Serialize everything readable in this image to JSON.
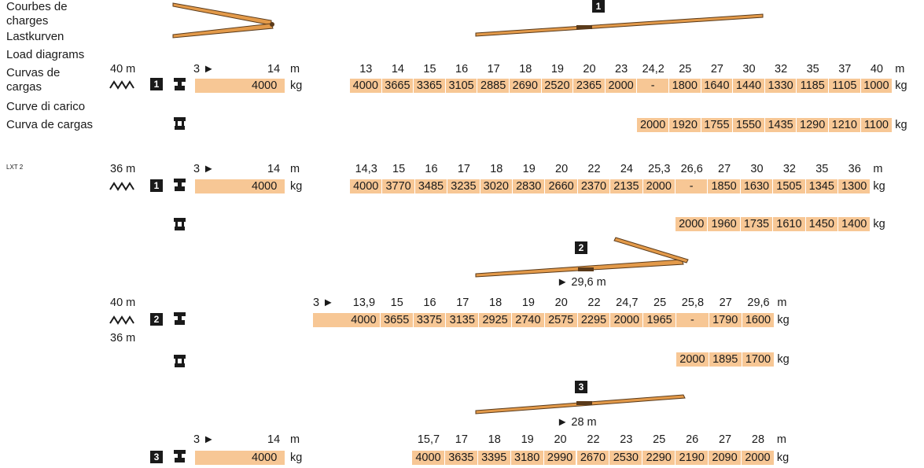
{
  "labels": {
    "languages": [
      "Courbes de charges",
      "Lastkurven",
      "Load diagrams",
      "Curvas de cargas",
      "Curve di carico",
      "Curva de cargas"
    ],
    "model": "LXT 2"
  },
  "boom_sections": [
    "1",
    "2",
    "3"
  ],
  "boom_reach": {
    "s2": "► 29,6 m",
    "s3": "► 28 m"
  },
  "colors": {
    "load_bar": "#f7c795",
    "badge": "#1a1a1a",
    "boom": "#e39a4a",
    "boom_dark": "#5a3a1a"
  },
  "tables": {
    "t1": {
      "height": "40 m",
      "section": "1",
      "pre": {
        "from": "3 ►",
        "to": "14",
        "unit": "m",
        "load": "4000",
        "load_unit": "kg"
      },
      "radii": [
        "13",
        "14",
        "15",
        "16",
        "17",
        "18",
        "19",
        "20",
        "23",
        "24,2",
        "25",
        "27",
        "30",
        "32",
        "35",
        "37",
        "40"
      ],
      "radius_unit": "m",
      "loads_a": [
        "4000",
        "3665",
        "3365",
        "3105",
        "2885",
        "2690",
        "2520",
        "2365",
        "2000",
        "-",
        "1800",
        "1640",
        "1440",
        "1330",
        "1185",
        "1105",
        "1000"
      ],
      "loads_b": [
        "2000",
        "1920",
        "1755",
        "1550",
        "1435",
        "1290",
        "1210",
        "1100"
      ],
      "load_unit": "kg"
    },
    "t2": {
      "height": "36 m",
      "section": "1",
      "pre": {
        "from": "3 ►",
        "to": "14",
        "unit": "m",
        "load": "4000",
        "load_unit": "kg"
      },
      "radii": [
        "14,3",
        "15",
        "16",
        "17",
        "18",
        "19",
        "20",
        "22",
        "24",
        "25,3",
        "26,6",
        "27",
        "30",
        "32",
        "35",
        "36"
      ],
      "radius_unit": "m",
      "loads_a": [
        "4000",
        "3770",
        "3485",
        "3235",
        "3020",
        "2830",
        "2660",
        "2370",
        "2135",
        "2000",
        "-",
        "1850",
        "1630",
        "1505",
        "1345",
        "1300"
      ],
      "loads_b": [
        "2000",
        "1960",
        "1735",
        "1610",
        "1450",
        "1400"
      ],
      "load_unit": "kg"
    },
    "t3": {
      "height": "40 m",
      "height2": "36 m",
      "section": "2",
      "pre": {
        "from": "3 ►"
      },
      "radii": [
        "13,9",
        "15",
        "16",
        "17",
        "18",
        "19",
        "20",
        "22",
        "24,7",
        "25",
        "25,8",
        "27",
        "29,6"
      ],
      "radius_unit": "m",
      "loads_a": [
        "4000",
        "3655",
        "3375",
        "3135",
        "2925",
        "2740",
        "2575",
        "2295",
        "2000",
        "1965",
        "-",
        "1790",
        "1600"
      ],
      "loads_b": [
        "2000",
        "1895",
        "1700"
      ],
      "load_unit": "kg"
    },
    "t4": {
      "section": "3",
      "pre": {
        "from": "3 ►",
        "to": "14",
        "unit": "m",
        "load": "4000",
        "load_unit": "kg"
      },
      "radii": [
        "15,7",
        "17",
        "18",
        "19",
        "20",
        "22",
        "23",
        "25",
        "26",
        "27",
        "28"
      ],
      "radius_unit": "m",
      "loads_a": [
        "4000",
        "3635",
        "3395",
        "3180",
        "2990",
        "2670",
        "2530",
        "2290",
        "2190",
        "2090",
        "2000"
      ],
      "load_unit": "kg"
    }
  }
}
